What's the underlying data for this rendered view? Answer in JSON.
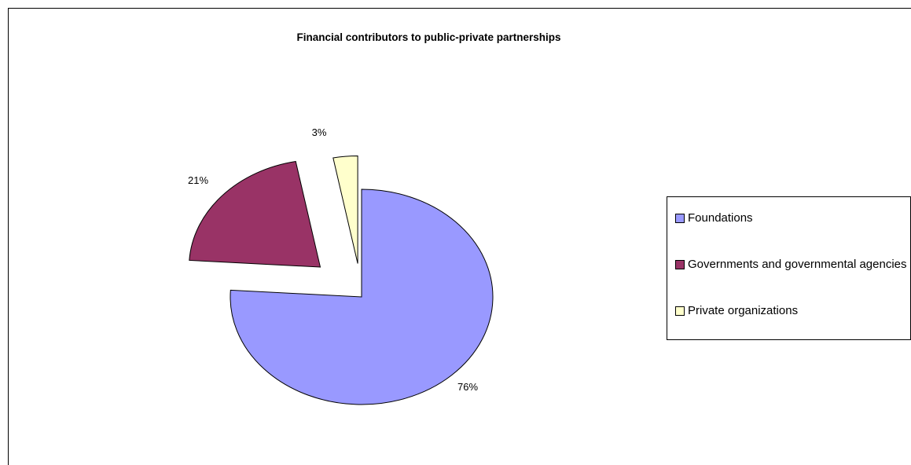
{
  "chart_data": {
    "type": "pie",
    "title": "Financial contributors to public-private partnerships",
    "exploded": true,
    "legend_placement": "right",
    "slices": [
      {
        "name": "Foundations",
        "value": 76,
        "label": "76%",
        "color": "#9999FF"
      },
      {
        "name": "Governments and governmental agencies",
        "value": 21,
        "label": "21%",
        "color": "#993366"
      },
      {
        "name": "Private organizations",
        "value": 3,
        "label": "3%",
        "color": "#FFFFCC"
      }
    ]
  }
}
